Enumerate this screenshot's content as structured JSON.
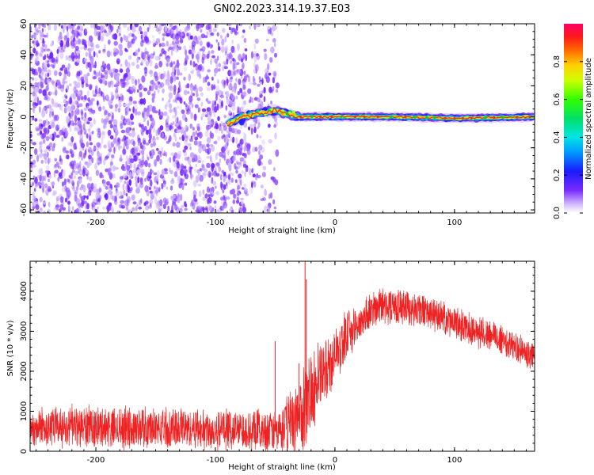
{
  "title": "GN02.2023.314.19.37.E03",
  "colors": {
    "snr_line": "#ee2222",
    "scatter": "#7a2cff",
    "ridge_core": "#ff2a2a",
    "axis": "#000000"
  },
  "chart_data": [
    {
      "type": "heatmap",
      "title": "GN02.2023.314.19.37.E03",
      "xlabel": "Height of straight line (km)",
      "ylabel": "Frequency (Hz)",
      "xlim": [
        -255,
        167
      ],
      "ylim": [
        -62,
        60
      ],
      "x_ticks": [
        -200,
        -100,
        0,
        100
      ],
      "y_ticks": [
        -60,
        -40,
        -20,
        0,
        20,
        40,
        60
      ],
      "colorbar": {
        "label": "Normalized spectral amplitude",
        "range": [
          0,
          1
        ],
        "ticks": [
          "0.0",
          "0.2",
          "0.4",
          "0.6",
          "0.8"
        ],
        "colormap": "rainbow"
      },
      "grid": false,
      "description_points": {
        "noise_band_x": [
          -255,
          -48
        ],
        "ridge_x": [
          -90,
          167
        ],
        "ridge_freq": [
          [
            -90,
            -5
          ],
          [
            -78,
            0
          ],
          [
            -60,
            3
          ],
          [
            -50,
            4
          ],
          [
            -30,
            0
          ],
          [
            -10,
            0
          ],
          [
            0,
            0
          ],
          [
            50,
            0
          ],
          [
            100,
            -1
          ],
          [
            167,
            0
          ]
        ]
      }
    },
    {
      "type": "line",
      "xlabel": "Height of straight line (km)",
      "ylabel": "SNR (10 * v/v)",
      "xlim": [
        -255,
        167
      ],
      "ylim": [
        0,
        4750
      ],
      "x_ticks": [
        -200,
        -100,
        0,
        100
      ],
      "y_ticks": [
        0,
        1000,
        2000,
        3000,
        4000
      ],
      "grid": false,
      "envelope": {
        "x": [
          -255,
          -200,
          -150,
          -100,
          -60,
          -45,
          -40,
          -30,
          -25,
          -20,
          -10,
          0,
          10,
          20,
          30,
          40,
          60,
          80,
          100,
          120,
          140,
          167
        ],
        "mean": [
          600,
          600,
          580,
          560,
          520,
          500,
          700,
          900,
          1000,
          1500,
          1900,
          2400,
          2900,
          3200,
          3500,
          3650,
          3600,
          3450,
          3200,
          3000,
          2800,
          2300
        ],
        "spread": [
          450,
          450,
          450,
          450,
          450,
          500,
          700,
          800,
          900,
          900,
          800,
          600,
          500,
          450,
          400,
          400,
          400,
          350,
          350,
          350,
          350,
          350
        ]
      },
      "spikes": [
        [
          -50,
          2750
        ],
        [
          -25,
          4750
        ],
        [
          -24,
          4300
        ],
        [
          -30,
          2200
        ]
      ]
    }
  ]
}
